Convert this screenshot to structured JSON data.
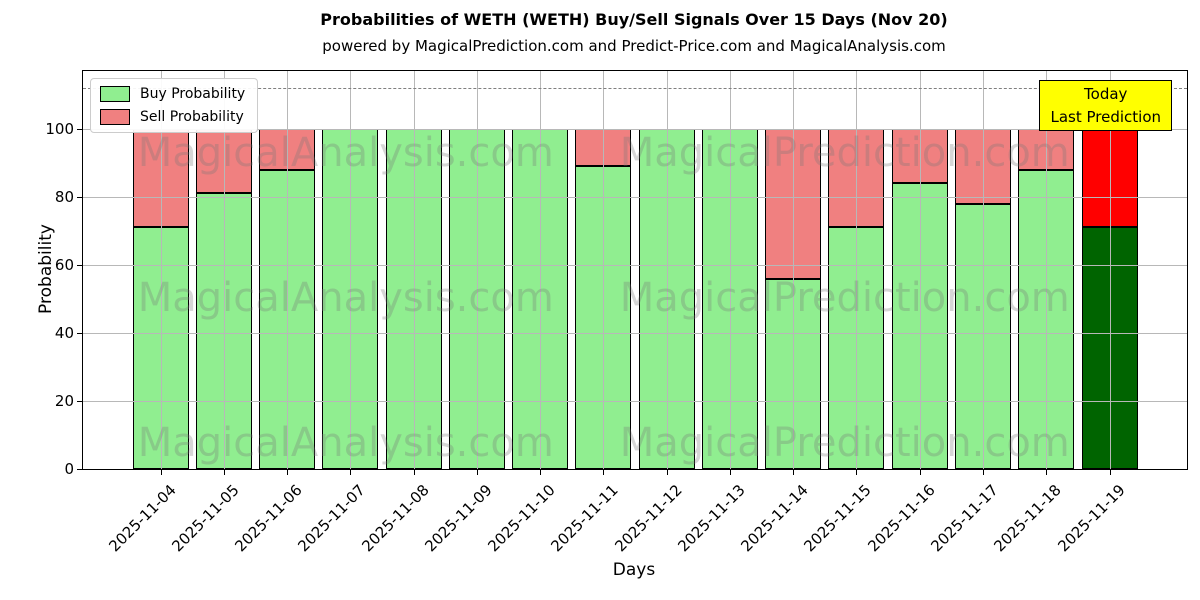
{
  "header": {
    "title": "Probabilities of WETH (WETH) Buy/Sell Signals Over 15 Days (Nov 20)",
    "subtitle": "powered by MagicalPrediction.com and Predict-Price.com and MagicalAnalysis.com"
  },
  "chart_data": {
    "type": "bar",
    "stacked": true,
    "title": "Probabilities of WETH (WETH) Buy/Sell Signals Over 15 Days (Nov 20)",
    "xlabel": "Days",
    "ylabel": "Probability",
    "categories": [
      "2025-11-04",
      "2025-11-05",
      "2025-11-06",
      "2025-11-07",
      "2025-11-08",
      "2025-11-09",
      "2025-11-10",
      "2025-11-11",
      "2025-11-12",
      "2025-11-13",
      "2025-11-14",
      "2025-11-15",
      "2025-11-16",
      "2025-11-17",
      "2025-11-18",
      "2025-11-19"
    ],
    "series": [
      {
        "name": "Buy Probability",
        "color": "#90EE90",
        "values": [
          71,
          81,
          88,
          100,
          100,
          100,
          100,
          89,
          100,
          100,
          56,
          71,
          84,
          78,
          88,
          71
        ]
      },
      {
        "name": "Sell Probability",
        "color": "#F08080",
        "values": [
          29,
          19,
          12,
          0,
          0,
          0,
          0,
          11,
          0,
          0,
          44,
          29,
          16,
          22,
          12,
          29
        ]
      }
    ],
    "today_bar": {
      "index": 15,
      "buy_color": "#006400",
      "sell_color": "#FF0000"
    },
    "yticks": [
      0,
      20,
      40,
      60,
      80,
      100
    ],
    "ylim": [
      0,
      117
    ],
    "dashed_line_y": 112,
    "grid": true,
    "legend_position": "upper left"
  },
  "annotation": {
    "lines": [
      "Today",
      "Last Prediction"
    ],
    "bg_color": "#FFFF00"
  },
  "watermarks": {
    "texts": [
      "MagicalAnalysis.com",
      "MagicalPrediction.com"
    ]
  },
  "colors": {
    "grid": "#b8b8b8",
    "dashed_line": "#7f7f7f",
    "spine": "#000000"
  }
}
